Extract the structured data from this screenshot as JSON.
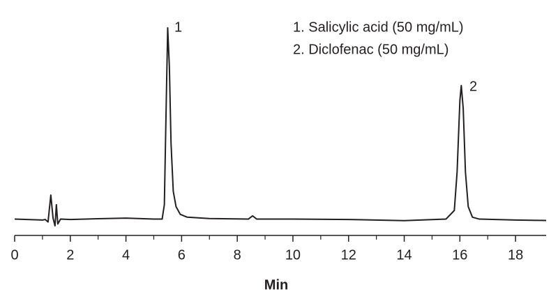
{
  "chart_data": {
    "type": "line",
    "xlabel": "Min",
    "legend_lines": [
      "1.  Salicylic acid (50 mg/mL)",
      "2.  Diclofenac (50 mg/mL)"
    ],
    "peak_labels": [
      "1",
      "2"
    ],
    "x": [
      0,
      1.0,
      1.1,
      1.2,
      1.3,
      1.38,
      1.45,
      1.5,
      1.55,
      1.65,
      2.0,
      3,
      4,
      5,
      5.3,
      5.38,
      5.44,
      5.5,
      5.56,
      5.62,
      5.7,
      5.8,
      5.95,
      6.2,
      7,
      8.4,
      8.55,
      8.7,
      10,
      12,
      14,
      15.5,
      15.8,
      15.9,
      16.0,
      16.05,
      16.12,
      16.2,
      16.3,
      16.45,
      16.7,
      18,
      19.1
    ],
    "series": [
      {
        "color": "#231f20",
        "values": [
          0.5,
          0,
          0.3,
          -1,
          13,
          1,
          -3,
          8,
          -2,
          0.5,
          0.3,
          0.7,
          1,
          0.5,
          0.5,
          8,
          55,
          100,
          80,
          40,
          15,
          7,
          3,
          1.5,
          0.8,
          0.5,
          2.2,
          0.5,
          0.5,
          0.3,
          -0.3,
          0.5,
          5,
          25,
          62,
          70,
          58,
          25,
          7,
          1.5,
          0.5,
          0,
          -0.2
        ]
      }
    ],
    "xlim": [
      0,
      19.1
    ],
    "ylim": [
      -8,
      104
    ],
    "xticks": [
      0,
      2,
      4,
      6,
      8,
      10,
      12,
      14,
      16,
      18
    ],
    "xminor_ticks": [
      1,
      3,
      5,
      7,
      9,
      11,
      13,
      15,
      17
    ]
  }
}
